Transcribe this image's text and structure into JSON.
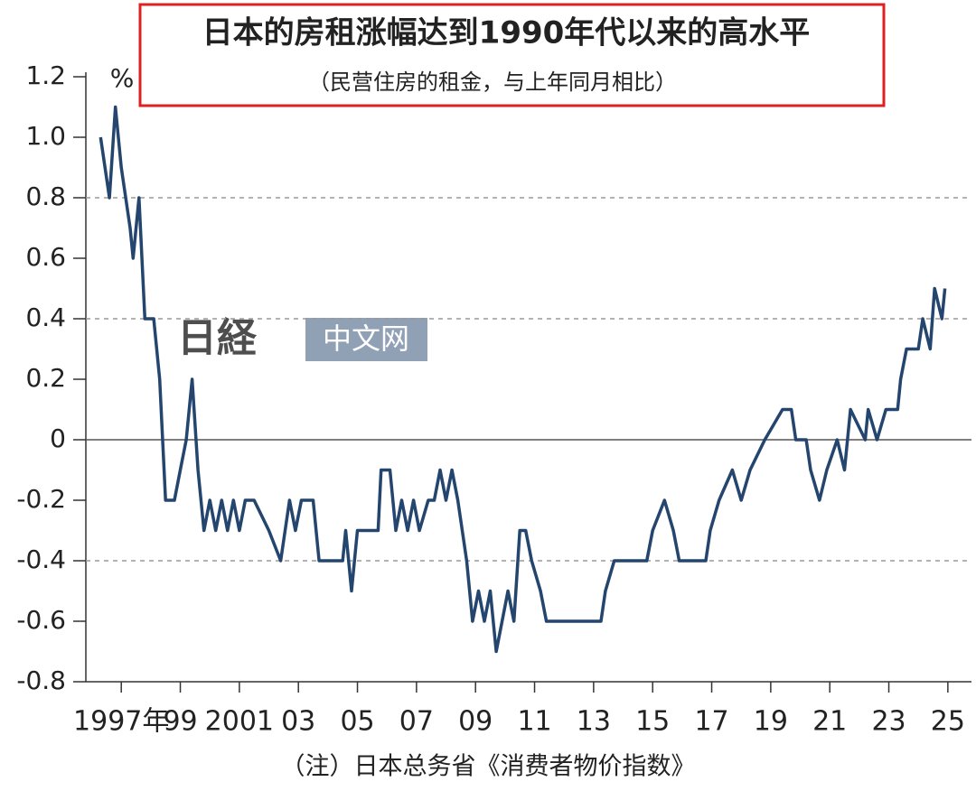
{
  "chart_data": {
    "type": "line",
    "title": "日本的房租涨幅达到1990年代以来的高水平",
    "subtitle": "（民营住房的租金，与上年同月相比）",
    "y_unit": "%",
    "note": "（注）日本总务省《消费者物价指数》",
    "watermark": [
      "日経",
      "中文网"
    ],
    "color": "#24456e",
    "grid": true,
    "xlim": [
      1996.3,
      2026.3
    ],
    "ylim": [
      -0.8,
      1.2
    ],
    "yticks": [
      1.2,
      {
        "value": 1,
        "label": "1.0"
      },
      0.8,
      0.6,
      0.4,
      0.2,
      0,
      -0.2,
      -0.4,
      -0.6,
      -0.8
    ],
    "xticks": [
      {
        "value": 1997.5,
        "label": "1997年"
      },
      {
        "value": 1999.5,
        "label": "99"
      },
      {
        "value": 2001.5,
        "label": "2001"
      },
      {
        "value": 2003.5,
        "label": "03"
      },
      {
        "value": 2005.5,
        "label": "05"
      },
      {
        "value": 2007.5,
        "label": "07"
      },
      {
        "value": 2009.5,
        "label": "09"
      },
      {
        "value": 2011.5,
        "label": "11"
      },
      {
        "value": 2013.5,
        "label": "13"
      },
      {
        "value": 2015.5,
        "label": "15"
      },
      {
        "value": 2017.5,
        "label": "17"
      },
      {
        "value": 2019.5,
        "label": "19"
      },
      {
        "value": 2021.5,
        "label": "21"
      },
      {
        "value": 2023.5,
        "label": "23"
      },
      {
        "value": 2025.5,
        "label": "25"
      }
    ],
    "x": [
      1996.8,
      1997.1,
      1997.3,
      1997.5,
      1997.8,
      1997.9,
      1998.1,
      1998.3,
      1998.6,
      1998.8,
      1999.0,
      1999.3,
      1999.5,
      1999.7,
      1999.9,
      2000.1,
      2000.3,
      2000.5,
      2000.7,
      2000.9,
      2001.1,
      2001.3,
      2001.5,
      2001.7,
      2002.0,
      2002.5,
      2002.9,
      2003.2,
      2003.4,
      2003.6,
      2004.0,
      2004.2,
      2005.0,
      2005.1,
      2005.3,
      2005.5,
      2006.2,
      2006.3,
      2006.6,
      2006.8,
      2007.0,
      2007.2,
      2007.4,
      2007.6,
      2007.9,
      2008.1,
      2008.3,
      2008.5,
      2008.7,
      2008.9,
      2009.2,
      2009.4,
      2009.6,
      2009.8,
      2010.0,
      2010.2,
      2010.4,
      2010.6,
      2010.8,
      2011.0,
      2011.2,
      2011.4,
      2011.7,
      2011.9,
      2013.75,
      2013.9,
      2014.2,
      2015.3,
      2015.5,
      2015.9,
      2016.2,
      2016.4,
      2017.3,
      2017.45,
      2017.75,
      2018.2,
      2018.5,
      2018.8,
      2019.3,
      2019.9,
      2020.2,
      2020.35,
      2020.7,
      2020.85,
      2021.15,
      2021.4,
      2021.75,
      2022.0,
      2022.2,
      2022.7,
      2022.8,
      2023.1,
      2023.4,
      2023.8,
      2023.9,
      2024.1,
      2024.5,
      2024.65,
      2024.9,
      2025.05,
      2025.3,
      2025.4
    ],
    "values": [
      1.0,
      0.8,
      1.1,
      0.9,
      0.7,
      0.6,
      0.8,
      0.4,
      0.4,
      0.2,
      -0.2,
      -0.2,
      -0.1,
      0.0,
      0.2,
      -0.1,
      -0.3,
      -0.2,
      -0.3,
      -0.2,
      -0.3,
      -0.2,
      -0.3,
      -0.2,
      -0.2,
      -0.3,
      -0.4,
      -0.2,
      -0.3,
      -0.2,
      -0.2,
      -0.4,
      -0.4,
      -0.3,
      -0.5,
      -0.3,
      -0.3,
      -0.1,
      -0.1,
      -0.3,
      -0.2,
      -0.3,
      -0.2,
      -0.3,
      -0.2,
      -0.2,
      -0.1,
      -0.2,
      -0.1,
      -0.2,
      -0.4,
      -0.6,
      -0.5,
      -0.6,
      -0.5,
      -0.7,
      -0.6,
      -0.5,
      -0.6,
      -0.3,
      -0.3,
      -0.4,
      -0.5,
      -0.6,
      -0.6,
      -0.5,
      -0.4,
      -0.4,
      -0.3,
      -0.2,
      -0.3,
      -0.4,
      -0.4,
      -0.3,
      -0.2,
      -0.1,
      -0.2,
      -0.1,
      0.0,
      0.1,
      0.1,
      0.0,
      0.0,
      -0.1,
      -0.2,
      -0.1,
      0.0,
      -0.1,
      0.1,
      0.0,
      0.1,
      0.0,
      0.1,
      0.1,
      0.2,
      0.3,
      0.3,
      0.4,
      0.3,
      0.5,
      0.4,
      0.5
    ]
  }
}
